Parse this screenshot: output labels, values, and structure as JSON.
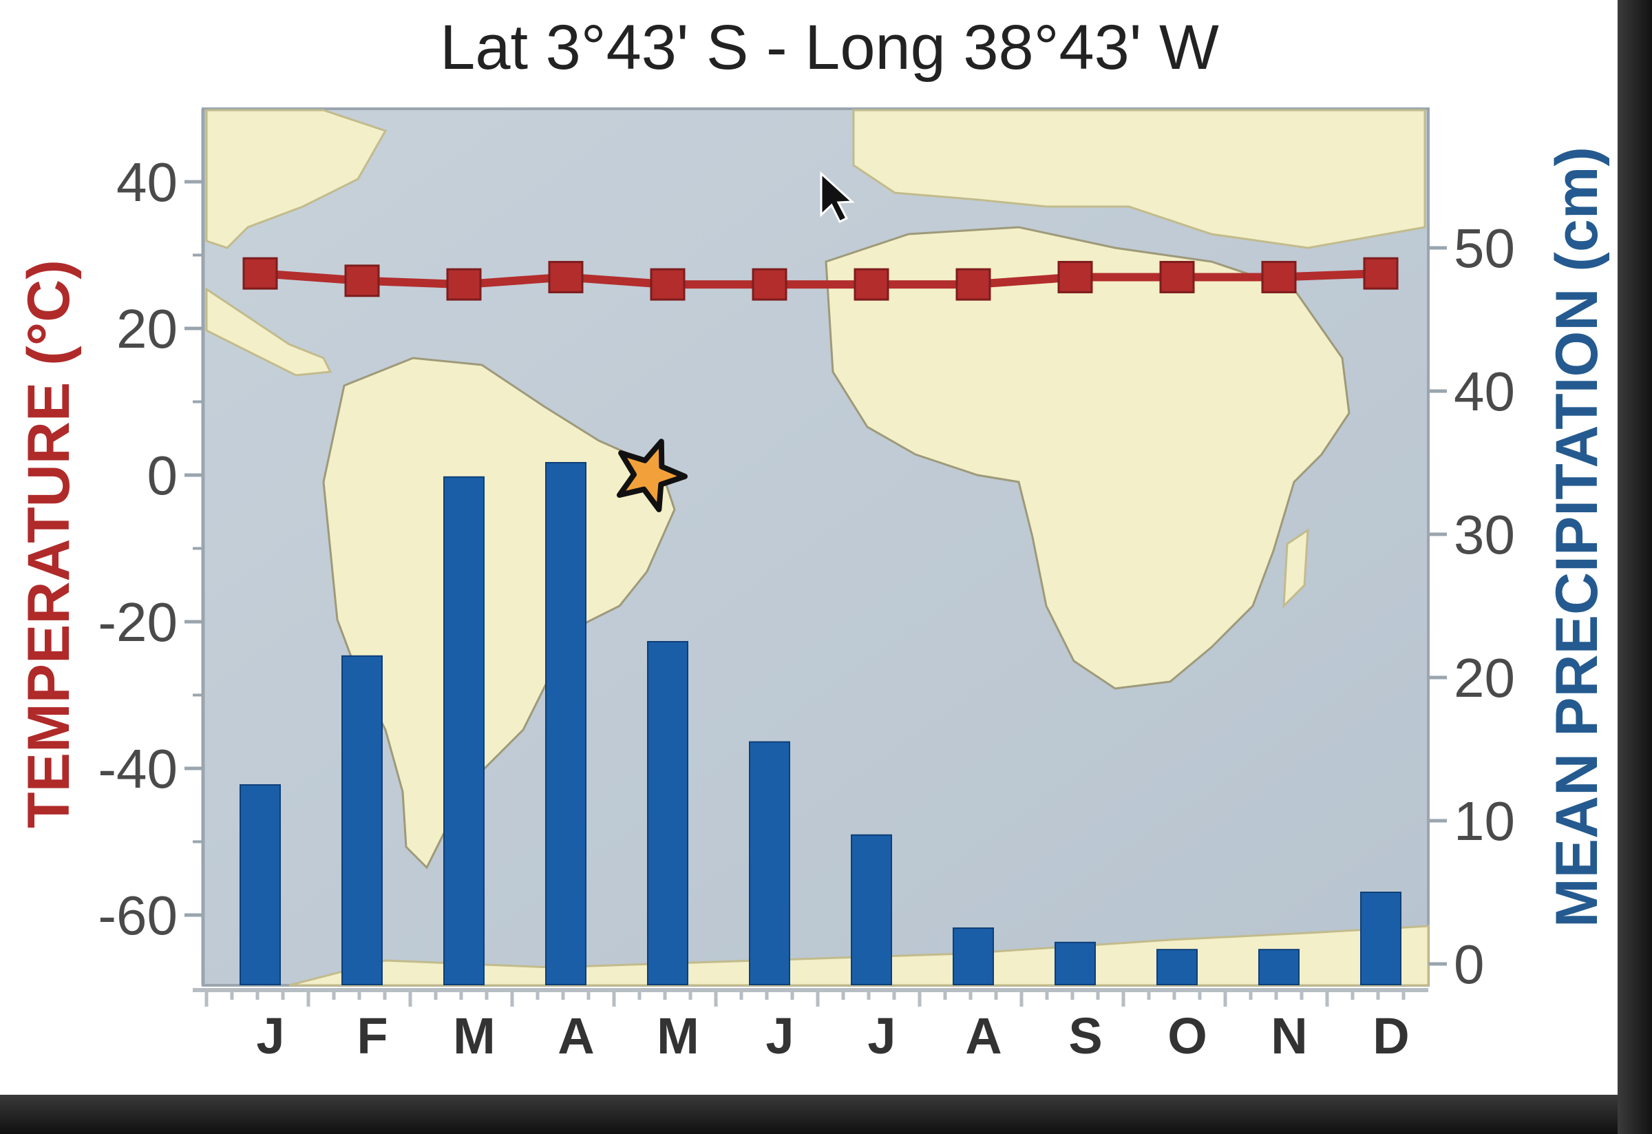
{
  "chart_data": {
    "type": "bar",
    "title": "Lat 3°43' S - Long 38°43' W",
    "categories": [
      "J",
      "F",
      "M",
      "A",
      "M",
      "J",
      "J",
      "A",
      "S",
      "O",
      "N",
      "D"
    ],
    "y_left": {
      "label": "TEMPERATURE (°C)",
      "range": [
        -70,
        50
      ],
      "ticks": [
        "40",
        "20",
        "0",
        "-20",
        "-40",
        "-60"
      ]
    },
    "y_right": {
      "label": "MEAN PRECIPITATION (cm)",
      "range": [
        0,
        60
      ],
      "ticks": [
        "50",
        "40",
        "30",
        "20",
        "10",
        "0"
      ]
    },
    "series": [
      {
        "name": "Temperature",
        "type": "line",
        "axis": "left",
        "color": "#b32d2d",
        "marker": "square",
        "values": [
          27.5,
          26.5,
          26,
          27,
          26,
          26,
          26,
          26,
          27,
          27,
          27,
          27.5
        ]
      },
      {
        "name": "Precipitation",
        "type": "bar",
        "axis": "right",
        "color": "#1a5ea8",
        "values": [
          12.5,
          21.5,
          34,
          35,
          22.5,
          15.5,
          9,
          2.5,
          1.5,
          1,
          1,
          5
        ]
      }
    ],
    "grid": false,
    "background": "map of Atlantic Ocean with South America and Africa",
    "marker_star": {
      "icon": "star-icon",
      "color": "#f2a13a",
      "position_x": "between A and M",
      "position_y_temp": 0
    }
  }
}
